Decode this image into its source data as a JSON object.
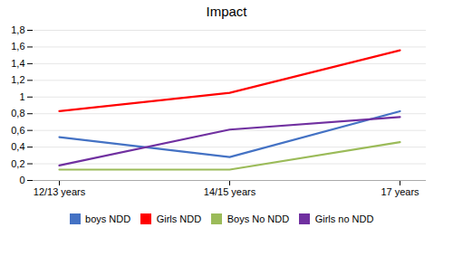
{
  "chart_data": {
    "type": "line",
    "title": "Impact",
    "categories": [
      "12/13 years",
      "14/15 years",
      "17 years"
    ],
    "series": [
      {
        "name": "boys NDD",
        "color": "#4472C4",
        "values": [
          0.52,
          0.28,
          0.83
        ]
      },
      {
        "name": "Girls NDD",
        "color": "#FF0000",
        "values": [
          0.83,
          1.05,
          1.56
        ]
      },
      {
        "name": "Boys No NDD",
        "color": "#9BBB59",
        "values": [
          0.13,
          0.13,
          0.46
        ]
      },
      {
        "name": "Girls no NDD",
        "color": "#7030A0",
        "values": [
          0.18,
          0.61,
          0.76
        ]
      }
    ],
    "ylim": [
      0,
      1.8
    ],
    "yticks": [
      0,
      {
        "value": 0.2,
        "label": "0,2"
      },
      {
        "value": 0.4,
        "label": "0,4"
      },
      {
        "value": 0.6,
        "label": "0,6"
      },
      {
        "value": 0.8,
        "label": "0,8"
      },
      1,
      {
        "value": 1.2,
        "label": "1,2"
      },
      {
        "value": 1.4,
        "label": "1,4"
      },
      {
        "value": 1.6,
        "label": "1,6"
      },
      {
        "value": 1.8,
        "label": "1,8"
      }
    ],
    "grid": true,
    "legend": "bottom"
  }
}
